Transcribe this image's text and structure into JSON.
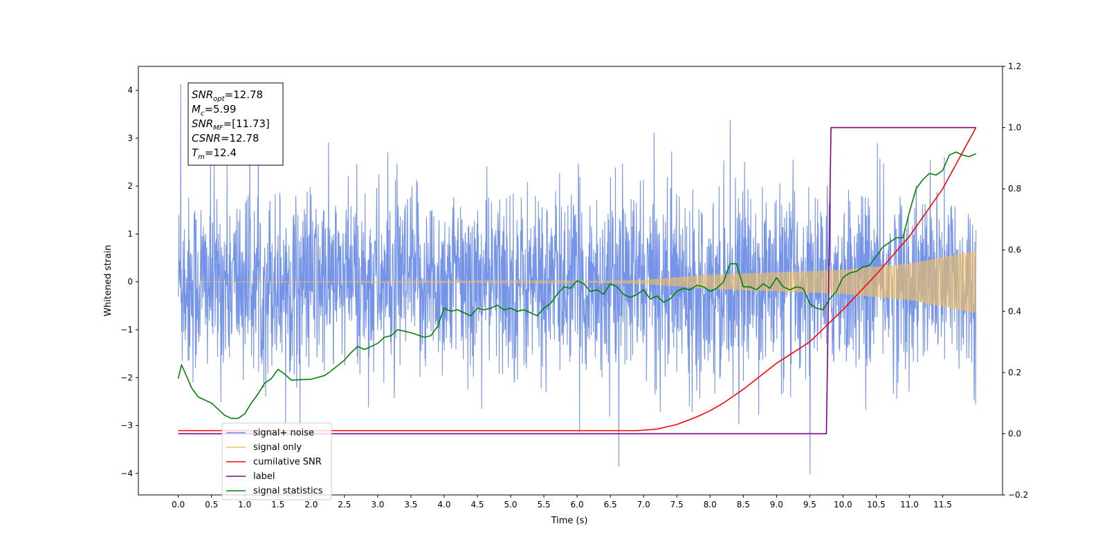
{
  "chart_data": {
    "type": "line",
    "xlabel": "Time (s)",
    "ylabel_left": "Whitened strain",
    "ylabel_right": "",
    "xlim": [
      -0.6,
      12.4
    ],
    "ylim_left": [
      -4.45,
      4.5
    ],
    "ylim_right": [
      -0.2,
      1.2
    ],
    "x_ticks": [
      0.0,
      0.5,
      1.0,
      1.5,
      2.0,
      2.5,
      3.0,
      3.5,
      4.0,
      4.5,
      5.0,
      5.5,
      6.0,
      6.5,
      7.0,
      7.5,
      8.0,
      8.5,
      9.0,
      9.5,
      10.0,
      10.5,
      11.0,
      11.5
    ],
    "x_tick_labels": [
      "0.0",
      "0.5",
      "1.0",
      "1.5",
      "2.0",
      "2.5",
      "3.0",
      "3.5",
      "4.0",
      "4.5",
      "5.0",
      "5.5",
      "6.0",
      "6.5",
      "7.0",
      "7.5",
      "8.0",
      "8.5",
      "9.0",
      "9.5",
      "10.0",
      "10.5",
      "11.0",
      "11.5"
    ],
    "y_left_ticks": [
      -4,
      -3,
      -2,
      -1,
      0,
      1,
      2,
      3,
      4
    ],
    "y_left_tick_labels": [
      "−4",
      "−3",
      "−2",
      "−1",
      "0",
      "1",
      "2",
      "3",
      "4"
    ],
    "y_right_ticks": [
      -0.2,
      0.0,
      0.2,
      0.4,
      0.6,
      0.8,
      1.0,
      1.2
    ],
    "y_right_tick_labels": [
      "−0.2",
      "0.0",
      "0.2",
      "0.4",
      "0.6",
      "0.8",
      "1.0",
      "1.2"
    ],
    "legend_position": "lower-left",
    "grid": false,
    "annotation_box": {
      "lines": [
        {
          "base": "SNR",
          "sub": "opt",
          "value": "=12.78"
        },
        {
          "base": "M",
          "sub": "c",
          "value": "=5.99"
        },
        {
          "base": "SNR",
          "sub": "MF",
          "value": "=[11.73]"
        },
        {
          "base": "CSNR",
          "sub": "",
          "value": "=12.78"
        },
        {
          "base": "T",
          "sub": "m",
          "value": "=12.4"
        }
      ]
    },
    "series": [
      {
        "name": "signal+ noise",
        "axis": "left",
        "color": "#6f8ee6",
        "kind": "noise",
        "x_range": [
          0.0,
          12.0
        ],
        "std": 0.85,
        "extremes_max": 4.12,
        "extremes_min": -4.02
      },
      {
        "name": "signal only",
        "axis": "left",
        "color": "#f5bf5c",
        "kind": "chirp",
        "x_range": [
          0.0,
          12.0
        ],
        "envelope": [
          [
            0.0,
            0.0
          ],
          [
            6.0,
            0.01
          ],
          [
            7.0,
            0.04
          ],
          [
            8.0,
            0.15
          ],
          [
            9.0,
            0.2
          ],
          [
            10.0,
            0.25
          ],
          [
            11.0,
            0.38
          ],
          [
            12.0,
            0.65
          ]
        ]
      },
      {
        "name": "cumilative SNR",
        "axis": "right",
        "color": "#ff0000",
        "x": [
          0.0,
          1.0,
          2.0,
          3.0,
          4.0,
          5.0,
          6.0,
          6.9,
          7.2,
          7.5,
          7.8,
          8.0,
          8.2,
          8.5,
          9.0,
          9.5,
          10.0,
          10.5,
          11.0,
          11.5,
          12.0
        ],
        "y": [
          0.01,
          0.01,
          0.01,
          0.01,
          0.01,
          0.01,
          0.01,
          0.01,
          0.015,
          0.03,
          0.055,
          0.075,
          0.1,
          0.145,
          0.23,
          0.3,
          0.405,
          0.52,
          0.645,
          0.8,
          1.0
        ]
      },
      {
        "name": "label",
        "axis": "right",
        "color": "#800080",
        "x": [
          0.0,
          9.75,
          9.82,
          12.0
        ],
        "y": [
          0.0,
          0.0,
          1.0,
          1.0
        ]
      },
      {
        "name": "signal statistics",
        "axis": "right",
        "color": "#008000",
        "x": [
          0.0,
          0.05,
          0.1,
          0.2,
          0.3,
          0.5,
          0.7,
          0.8,
          0.9,
          1.0,
          1.1,
          1.2,
          1.3,
          1.4,
          1.5,
          1.6,
          1.7,
          2.0,
          2.2,
          2.3,
          2.5,
          2.6,
          2.7,
          2.8,
          2.9,
          3.0,
          3.1,
          3.2,
          3.3,
          3.5,
          3.7,
          3.8,
          3.9,
          4.0,
          4.1,
          4.2,
          4.3,
          4.4,
          4.5,
          4.6,
          4.7,
          4.8,
          4.9,
          5.0,
          5.1,
          5.2,
          5.3,
          5.4,
          5.5,
          5.6,
          5.7,
          5.8,
          5.9,
          6.0,
          6.1,
          6.2,
          6.3,
          6.4,
          6.5,
          6.6,
          6.7,
          6.8,
          6.9,
          7.0,
          7.1,
          7.2,
          7.3,
          7.4,
          7.5,
          7.6,
          7.7,
          7.8,
          7.9,
          8.0,
          8.1,
          8.2,
          8.3,
          8.4,
          8.5,
          8.6,
          8.7,
          8.8,
          8.9,
          9.0,
          9.1,
          9.2,
          9.3,
          9.4,
          9.5,
          9.6,
          9.7,
          9.8,
          9.9,
          10.0,
          10.1,
          10.2,
          10.3,
          10.4,
          10.5,
          10.6,
          10.7,
          10.8,
          10.9,
          11.0,
          11.1,
          11.2,
          11.3,
          11.4,
          11.5,
          11.6,
          11.7,
          11.8,
          11.9,
          12.0
        ],
        "y": [
          0.18,
          0.225,
          0.2,
          0.15,
          0.12,
          0.1,
          0.06,
          0.05,
          0.05,
          0.065,
          0.1,
          0.13,
          0.165,
          0.18,
          0.21,
          0.195,
          0.175,
          0.178,
          0.19,
          0.205,
          0.24,
          0.265,
          0.285,
          0.275,
          0.285,
          0.295,
          0.315,
          0.32,
          0.34,
          0.33,
          0.315,
          0.32,
          0.35,
          0.41,
          0.4,
          0.405,
          0.395,
          0.385,
          0.41,
          0.405,
          0.41,
          0.42,
          0.405,
          0.41,
          0.4,
          0.405,
          0.395,
          0.385,
          0.41,
          0.425,
          0.455,
          0.48,
          0.475,
          0.5,
          0.49,
          0.465,
          0.47,
          0.455,
          0.49,
          0.48,
          0.455,
          0.445,
          0.455,
          0.47,
          0.44,
          0.45,
          0.43,
          0.44,
          0.465,
          0.475,
          0.47,
          0.485,
          0.48,
          0.465,
          0.475,
          0.495,
          0.555,
          0.555,
          0.48,
          0.48,
          0.47,
          0.49,
          0.475,
          0.51,
          0.48,
          0.47,
          0.48,
          0.475,
          0.425,
          0.41,
          0.405,
          0.44,
          0.465,
          0.51,
          0.525,
          0.53,
          0.545,
          0.55,
          0.58,
          0.61,
          0.625,
          0.64,
          0.64,
          0.725,
          0.8,
          0.83,
          0.85,
          0.845,
          0.86,
          0.91,
          0.92,
          0.91,
          0.905,
          0.915
        ]
      }
    ]
  }
}
